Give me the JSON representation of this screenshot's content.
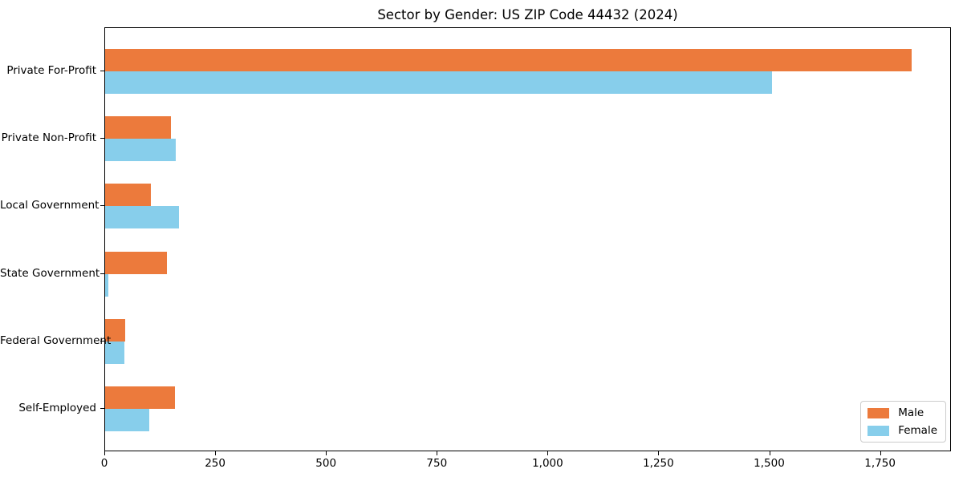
{
  "chart_data": {
    "type": "bar",
    "orientation": "horizontal",
    "title": "Sector by Gender: US ZIP Code 44432 (2024)",
    "categories": [
      "Private For-Profit",
      "Private Non-Profit",
      "Local Government",
      "State Government",
      "Federal Government",
      "Self-Employed"
    ],
    "series": [
      {
        "name": "Male",
        "color": "#ec7a3c",
        "values": [
          1820,
          148,
          103,
          140,
          45,
          158
        ]
      },
      {
        "name": "Female",
        "color": "#87ceeb",
        "values": [
          1505,
          159,
          166,
          8,
          44,
          100
        ]
      }
    ],
    "xlabel": "",
    "ylabel": "",
    "xlim": [
      0,
      1910
    ],
    "xticks": [
      0,
      250,
      500,
      750,
      1000,
      1250,
      1500,
      1750
    ],
    "xtick_labels": [
      "0",
      "250",
      "500",
      "750",
      "1,000",
      "1,250",
      "1,500",
      "1,750"
    ],
    "legend_position": "lower right",
    "grid": false,
    "plot_background": "#ffffff",
    "axis_color": "#000000"
  }
}
